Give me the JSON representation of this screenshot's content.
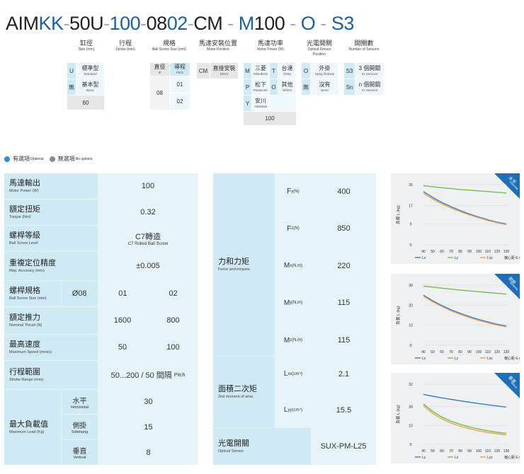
{
  "model_code": {
    "parts": [
      {
        "text": "AIM",
        "color": "dark"
      },
      {
        "text": "KK",
        "color": "blue"
      },
      {
        "text": "-",
        "color": "dash"
      },
      {
        "text": "50U",
        "color": "dark"
      },
      {
        "text": "-",
        "color": "dash"
      },
      {
        "text": "100",
        "color": "blue"
      },
      {
        "text": "-",
        "color": "dash"
      },
      {
        "text": "08",
        "color": "dark"
      },
      {
        "text": "02",
        "color": "blue"
      },
      {
        "text": "-",
        "color": "dash"
      },
      {
        "text": "CM",
        "color": "dark"
      },
      {
        "text": " - ",
        "color": "dash"
      },
      {
        "text": "M",
        "color": "blue"
      },
      {
        "text": "100",
        "color": "dark"
      },
      {
        "text": " - ",
        "color": "dash"
      },
      {
        "text": "O",
        "color": "blue"
      },
      {
        "text": " - ",
        "color": "dash"
      },
      {
        "text": "S3",
        "color": "blue"
      }
    ],
    "segments": [
      {
        "zh": "缸徑",
        "en": "Size (mm)"
      },
      {
        "zh": "行程",
        "en": "Stroke (mm)"
      },
      {
        "zh": "規格",
        "en": "Ball Screw Size (mm)"
      },
      {
        "zh": "馬達安裝位置",
        "en": "Motor Position"
      },
      {
        "zh": "馬達功率",
        "en": "Motor Power (W)"
      },
      {
        "zh": "光電開關",
        "en": "Optical Sensor Position"
      },
      {
        "zh": "開關數",
        "en": "Number of Sensors"
      }
    ],
    "size_options": {
      "u_code": "U",
      "u_zh": "標準型",
      "u_en": "Standard",
      "n_code": "無",
      "n_zh": "基本型",
      "n_en": "Basic",
      "value": "60"
    },
    "screw_options": {
      "h1_zh": "直徑",
      "h1_en": "Φ",
      "h2_zh": "導程",
      "h2_en": "Pitch",
      "dia": "08",
      "pitch1": "01",
      "pitch2": "02"
    },
    "motor_position": {
      "code": "CM",
      "zh": "直接安裝",
      "en": "Direct"
    },
    "motor_brand": [
      {
        "code": "M",
        "zh": "三菱",
        "en": "Mitsubishi"
      },
      {
        "code": "T",
        "zh": "台達",
        "en": "Delta"
      },
      {
        "code": "P",
        "zh": "松下",
        "en": "Panasonic"
      },
      {
        "code": "O",
        "zh": "其他",
        "en": "Others"
      },
      {
        "code": "Y",
        "zh": "安川",
        "en": "Yaskawa"
      }
    ],
    "motor_power": "100",
    "sensor_position": [
      {
        "code": "O",
        "zh": "外掛",
        "en": "Hang Outside"
      },
      {
        "code": "無",
        "zh": "沒有",
        "en": "None"
      }
    ],
    "sensor_count": [
      {
        "code": "S3",
        "zh": "3 個開關",
        "en": "3x Sensors"
      },
      {
        "code": "Sn",
        "zh": "n 個開關",
        "en": "nx Sensors"
      }
    ]
  },
  "legend": {
    "optional_zh": "有選項",
    "optional_en": "Optional",
    "no_options_zh": "無選項",
    "no_options_en": "No options",
    "optional_color": "#2f8fce",
    "no_options_color": "#8c8c8c"
  },
  "spec_left": {
    "motor_power": {
      "zh": "馬達輸出",
      "en": "Motor Power (W)",
      "value": "100"
    },
    "torque": {
      "zh": "額定扭矩",
      "en": "Torque (Nm)",
      "value": "0.32"
    },
    "screw_level": {
      "zh": "螺桿等級",
      "en": "Ball Screw Level",
      "value_zh": "C7轉造",
      "value_en": "C7 Rolled Ball Screw"
    },
    "repeat": {
      "zh": "重複定位精度",
      "en": "Rep. Accuracy (mm)",
      "value": "±0.005"
    },
    "screw_size": {
      "zh": "螺桿規格",
      "en": "Ball Screw Size (mm)",
      "dia": "Ø08",
      "v1": "01",
      "v2": "02"
    },
    "thrust": {
      "zh": "額定推力",
      "en": "Nominal Thrust (N)",
      "v1": "1600",
      "v2": "800"
    },
    "speed": {
      "zh": "最高速度",
      "en": "Maximum Speed (mm/s)",
      "v1": "50",
      "v2": "100"
    },
    "stroke": {
      "zh": "行程範圍",
      "en": "Stroke Range (mm)",
      "value": "50...200 / 50 間隔",
      "value_en": "Pitch"
    },
    "max_load": {
      "zh": "最大負載值",
      "en": "Maximum Load (Kg)",
      "rows": [
        {
          "zh": "水平",
          "en": "Horizontal",
          "value": "30"
        },
        {
          "zh": "側掛",
          "en": "Sidehang",
          "value": "15"
        },
        {
          "zh": "垂直",
          "en": "Vertical",
          "value": "8"
        }
      ]
    }
  },
  "spec_right": {
    "force": {
      "zh": "力和力矩",
      "en": "Force and torques",
      "rows": [
        {
          "sym": "F",
          "sub": "y",
          "unit": "(N)",
          "value": "400"
        },
        {
          "sym": "F",
          "sub": "z",
          "unit": "(N)",
          "value": "850"
        },
        {
          "sym": "M",
          "sub": "x",
          "unit": "(N.m)",
          "value": "220"
        },
        {
          "sym": "M",
          "sub": "y",
          "unit": "(N.m)",
          "value": "115"
        },
        {
          "sym": "M",
          "sub": "z",
          "unit": "(N.m)",
          "value": "115"
        }
      ]
    },
    "moment": {
      "zh": "面積二次矩",
      "en": "2nd moment of area",
      "rows": [
        {
          "sym": "L",
          "sub": "xx",
          "unit": "(cm⁴)",
          "value": "2.1"
        },
        {
          "sym": "L",
          "sub": "yy",
          "unit": "(cm⁴)",
          "value": "15.5"
        }
      ]
    },
    "sensor": {
      "zh": "光電開關",
      "en": "Optical Sensor",
      "value": "SUX-PM-L25"
    }
  },
  "chart_data": [
    {
      "type": "line",
      "badge_zh": "水平",
      "badge_en": "Horizontal",
      "ylabel": "負載 L (kg)",
      "xlabel": "偏心距 E (cm)",
      "ylim": [
        0,
        26
      ],
      "yticks": [
        0,
        9,
        17,
        26
      ],
      "xticks": [
        40,
        50,
        60,
        70,
        80,
        90,
        100,
        110,
        120,
        130
      ],
      "x": [
        40,
        50,
        60,
        70,
        80,
        90,
        100,
        110,
        120,
        130
      ],
      "series": [
        {
          "name": "Lx",
          "color": "#3a7dc9",
          "values": [
            23,
            20.5,
            18.3,
            16.5,
            14.8,
            13.3,
            12,
            10.8,
            9.8,
            9
          ]
        },
        {
          "name": "Ly",
          "color": "#6fbf4a",
          "values": [
            25.5,
            25.1,
            24.7,
            24.3,
            23.9,
            23.6,
            23.3,
            23,
            22.7,
            22.4
          ]
        },
        {
          "name": "Lxy",
          "color": "#f0a04b",
          "values": [
            22.3,
            19.8,
            17.7,
            15.9,
            14.3,
            12.9,
            11.7,
            10.5,
            9.5,
            8.7
          ]
        }
      ],
      "legend_labels": [
        "Lx",
        "Ly",
        "Lxy"
      ]
    },
    {
      "type": "line",
      "badge_zh": "側掛",
      "badge_en": "Sidehang",
      "ylabel": "負載 L (kg)",
      "xlabel": "偏心距 E (cm)",
      "ylim": [
        0,
        30
      ],
      "yticks": [
        0,
        10,
        20,
        30
      ],
      "xticks": [
        40,
        50,
        60,
        70,
        80,
        90,
        100,
        110,
        120,
        130
      ],
      "x": [
        40,
        50,
        60,
        70,
        80,
        90,
        100,
        110,
        120,
        130
      ],
      "series": [
        {
          "name": "Lx",
          "color": "#3a7dc9",
          "values": [
            25,
            22.2,
            19.8,
            17.7,
            15.9,
            14.3,
            12.9,
            11.6,
            10.5,
            9.6
          ]
        },
        {
          "name": "Lz",
          "color": "#6fbf4a",
          "values": [
            29.5,
            29,
            28.5,
            28,
            27.5,
            27.1,
            26.7,
            26.3,
            25.9,
            25.5
          ]
        },
        {
          "name": "Lxz",
          "color": "#f0a04b",
          "values": [
            24.5,
            21.7,
            19.3,
            17.2,
            15.4,
            13.8,
            12.4,
            11.2,
            10.1,
            9.2
          ]
        }
      ],
      "legend_labels": [
        "Lx",
        "Lz",
        "Lxz"
      ]
    },
    {
      "type": "line",
      "badge_zh": "垂直",
      "badge_en": "Vertical",
      "ylabel": "負載 L (kg)",
      "xlabel": "偏心距 E (cm)",
      "ylim": [
        0,
        32
      ],
      "yticks": [
        0,
        10,
        20,
        32
      ],
      "xticks": [
        40,
        50,
        60,
        70,
        80,
        90,
        100,
        110,
        120,
        130
      ],
      "x": [
        40,
        50,
        60,
        70,
        80,
        90,
        100,
        110,
        120,
        130
      ],
      "series": [
        {
          "name": "Ly",
          "color": "#3a7dc9",
          "values": [
            26.5,
            25.6,
            24.7,
            23.9,
            23.1,
            22.4,
            21.7,
            21,
            20.4,
            19.8
          ]
        },
        {
          "name": "Lz",
          "color": "#6fbf4a",
          "values": [
            21.5,
            17.5,
            14.5,
            12.3,
            10.6,
            9.2,
            8.1,
            7.2,
            6.4,
            5.8
          ]
        },
        {
          "name": "Lyz",
          "color": "#f0a04b",
          "values": [
            20.5,
            16.5,
            13.5,
            11.3,
            9.6,
            8.2,
            7.2,
            6.3,
            5.6,
            5
          ]
        }
      ],
      "legend_labels": [
        "Ly",
        "Lz",
        "Lyz"
      ]
    }
  ]
}
